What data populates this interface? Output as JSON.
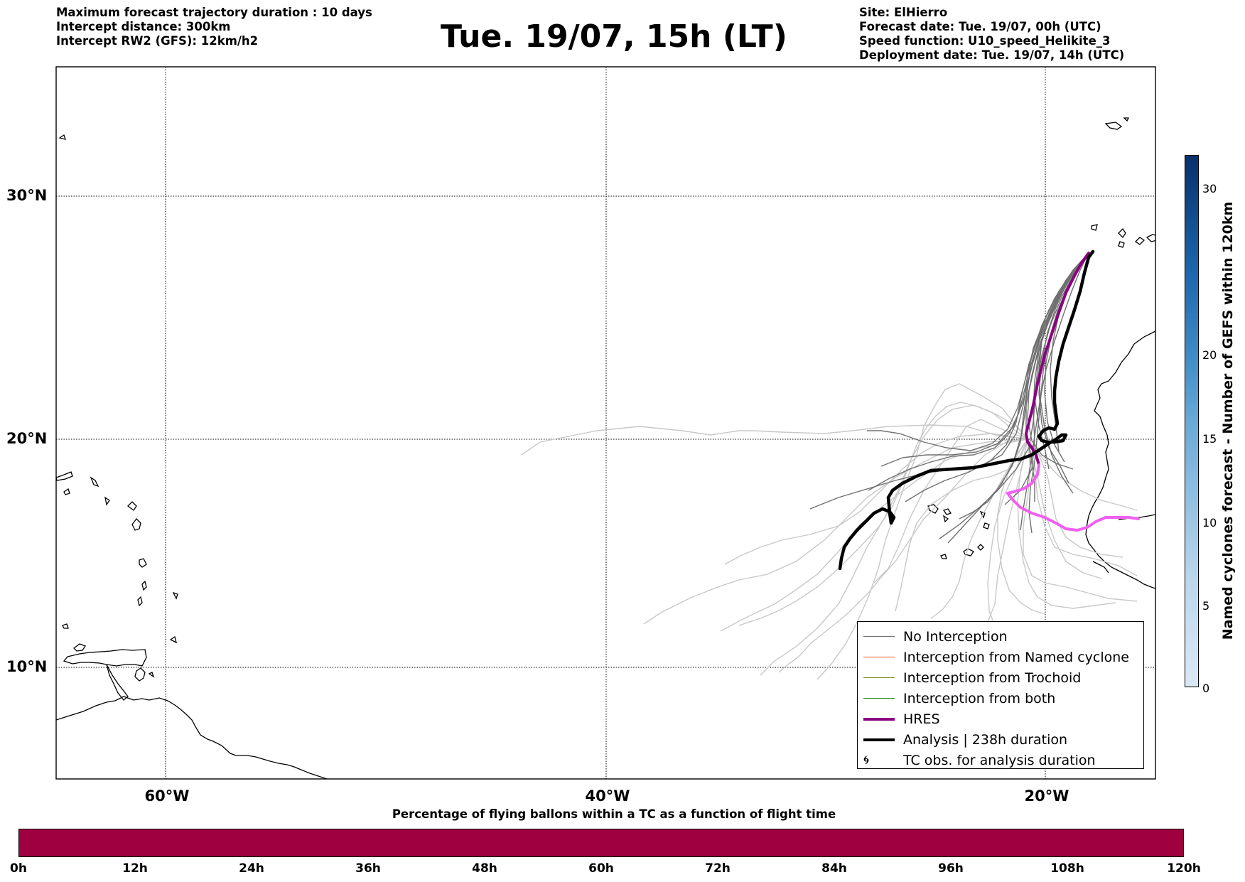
{
  "header_left": [
    "Maximum forecast trajectory duration : 10 days",
    "Intercept distance: 300km",
    "Intercept RW2 (GFS):  12km/h2"
  ],
  "title": "Tue. 19/07, 15h (LT)",
  "header_right": [
    "Site: ElHierro",
    "Forecast date: Tue. 19/07, 00h (UTC)",
    "Speed function: U10_speed_Helikite_3",
    "Deployment date: Tue. 19/07, 14h (UTC)"
  ],
  "map": {
    "lon_range": [
      -65,
      15
    ],
    "lat_range": [
      5,
      35
    ],
    "lat_labels": [
      "30°N",
      "20°N",
      "10°N"
    ],
    "lon_labels": [
      "60°W",
      "40°W",
      "20°W"
    ],
    "colors": {
      "no_interception": "#707070",
      "light_traj": "#c8c8c8",
      "hres_dark": "#8b0080",
      "hres_light": "#f060f0",
      "analysis": "#000000"
    }
  },
  "legend": {
    "items": [
      {
        "label": "No Interception",
        "color": "#707070",
        "width": 1.2
      },
      {
        "label": "Interception from Named cyclone",
        "color": "#e8501e",
        "width": 1.2
      },
      {
        "label": "Interception from Trochoid",
        "color": "#8a8a20",
        "width": 1.2
      },
      {
        "label": "Interception from both",
        "color": "#1f8a1f",
        "width": 1.2
      },
      {
        "label": "HRES",
        "color": "#8b0080",
        "width": 4
      },
      {
        "label": "Analysis | 238h duration",
        "color": "#000000",
        "width": 4
      }
    ],
    "tc_obs": {
      "label": "TC obs. for analysis duration",
      "icon": "tc-symbol-icon"
    }
  },
  "colorbar_vertical": {
    "label": "Named cyclones forecast - Number of GEFS within 120km",
    "ticks": [
      "30",
      "20",
      "15",
      "10",
      "5",
      "0"
    ],
    "tick_values": [
      30,
      20,
      15,
      10,
      5,
      0
    ],
    "range": [
      0,
      32
    ]
  },
  "colorbar_horizontal": {
    "title": "Percentage of flying ballons within a TC as a function of flight time",
    "ticks": [
      "0h",
      "12h",
      "24h",
      "36h",
      "48h",
      "60h",
      "72h",
      "84h",
      "96h",
      "108h",
      "120h"
    ],
    "color": "#9e0040"
  }
}
